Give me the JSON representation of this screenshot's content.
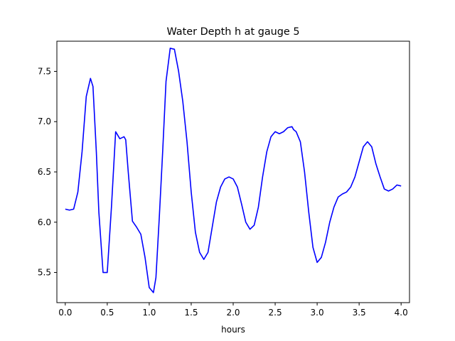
{
  "chart_data": {
    "type": "line",
    "title": "Water Depth h at gauge 5",
    "xlabel": "hours",
    "ylabel": "",
    "xlim": [
      -0.1,
      4.1
    ],
    "ylim": [
      5.2,
      7.8
    ],
    "xticks": [
      0.0,
      0.5,
      1.0,
      1.5,
      2.0,
      2.5,
      3.0,
      3.5,
      4.0
    ],
    "xtick_labels": [
      "0.0",
      "0.5",
      "1.0",
      "1.5",
      "2.0",
      "2.5",
      "3.0",
      "3.5",
      "4.0"
    ],
    "yticks": [
      5.5,
      6.0,
      6.5,
      7.0,
      7.5
    ],
    "ytick_labels": [
      "5.5",
      "6.0",
      "6.5",
      "7.0",
      "7.5"
    ],
    "grid": false,
    "series": [
      {
        "color": "#0000ff",
        "x": [
          0.0,
          0.05,
          0.1,
          0.15,
          0.2,
          0.25,
          0.3,
          0.33,
          0.37,
          0.4,
          0.45,
          0.5,
          0.55,
          0.6,
          0.65,
          0.7,
          0.72,
          0.75,
          0.8,
          0.85,
          0.9,
          0.95,
          1.0,
          1.05,
          1.08,
          1.12,
          1.16,
          1.2,
          1.25,
          1.3,
          1.35,
          1.4,
          1.45,
          1.5,
          1.55,
          1.6,
          1.65,
          1.7,
          1.75,
          1.8,
          1.85,
          1.9,
          1.95,
          2.0,
          2.05,
          2.1,
          2.15,
          2.2,
          2.25,
          2.3,
          2.35,
          2.4,
          2.45,
          2.5,
          2.55,
          2.6,
          2.65,
          2.7,
          2.72,
          2.75,
          2.8,
          2.85,
          2.9,
          2.95,
          3.0,
          3.05,
          3.1,
          3.15,
          3.2,
          3.25,
          3.3,
          3.35,
          3.4,
          3.45,
          3.5,
          3.55,
          3.6,
          3.65,
          3.7,
          3.75,
          3.8,
          3.85,
          3.9,
          3.95,
          4.0
        ],
        "y": [
          6.13,
          6.12,
          6.13,
          6.3,
          6.7,
          7.25,
          7.43,
          7.35,
          6.7,
          6.1,
          5.5,
          5.5,
          6.15,
          6.9,
          6.83,
          6.85,
          6.82,
          6.5,
          6.01,
          5.95,
          5.88,
          5.65,
          5.35,
          5.3,
          5.45,
          6.05,
          6.7,
          7.4,
          7.73,
          7.72,
          7.5,
          7.2,
          6.8,
          6.3,
          5.9,
          5.7,
          5.63,
          5.7,
          5.95,
          6.2,
          6.35,
          6.43,
          6.45,
          6.43,
          6.35,
          6.18,
          6.0,
          5.93,
          5.97,
          6.15,
          6.45,
          6.7,
          6.85,
          6.9,
          6.88,
          6.9,
          6.94,
          6.95,
          6.92,
          6.9,
          6.8,
          6.5,
          6.1,
          5.75,
          5.6,
          5.65,
          5.8,
          6.0,
          6.15,
          6.25,
          6.28,
          6.3,
          6.35,
          6.45,
          6.6,
          6.75,
          6.8,
          6.75,
          6.58,
          6.45,
          6.33,
          6.31,
          6.33,
          6.37,
          6.36
        ]
      }
    ]
  }
}
